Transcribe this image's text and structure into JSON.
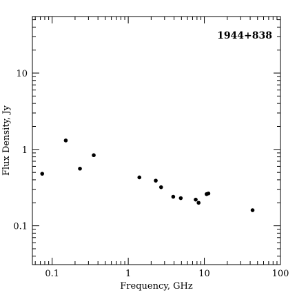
{
  "chart_data": {
    "type": "scatter",
    "title": "1944+838",
    "xlabel": "Frequency, GHz",
    "ylabel": "Flux Density, Jy",
    "xscale": "log",
    "yscale": "log",
    "xlim": [
      0.055,
      100
    ],
    "ylim": [
      0.031,
      55
    ],
    "x_ticks": [
      {
        "value": 0.1,
        "label": "0.1"
      },
      {
        "value": 1,
        "label": "1"
      },
      {
        "value": 10,
        "label": "10"
      },
      {
        "value": 100,
        "label": "100"
      }
    ],
    "y_ticks": [
      {
        "value": 0.1,
        "label": "0.1"
      },
      {
        "value": 1,
        "label": "1"
      },
      {
        "value": 10,
        "label": "10"
      }
    ],
    "title_position": "top-right",
    "grid": false,
    "points": [
      {
        "x": 0.074,
        "y": 0.48
      },
      {
        "x": 0.151,
        "y": 1.31
      },
      {
        "x": 0.232,
        "y": 0.56
      },
      {
        "x": 0.352,
        "y": 0.84
      },
      {
        "x": 1.4,
        "y": 0.43
      },
      {
        "x": 2.3,
        "y": 0.39
      },
      {
        "x": 2.7,
        "y": 0.32
      },
      {
        "x": 3.9,
        "y": 0.24
      },
      {
        "x": 4.9,
        "y": 0.23
      },
      {
        "x": 7.7,
        "y": 0.22
      },
      {
        "x": 8.4,
        "y": 0.2
      },
      {
        "x": 10.7,
        "y": 0.26
      },
      {
        "x": 11.3,
        "y": 0.265
      },
      {
        "x": 43.0,
        "y": 0.16
      }
    ]
  }
}
